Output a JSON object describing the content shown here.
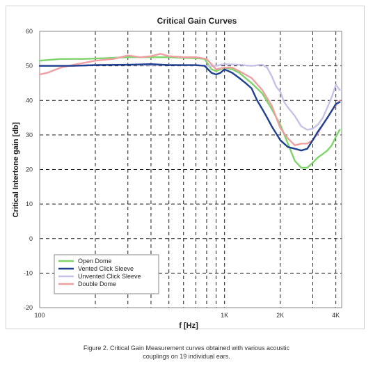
{
  "chart_data": {
    "type": "line",
    "title": "Critical Gain Curves",
    "xlabel": "f [Hz]",
    "ylabel": "Critical Intertone gain [db]",
    "x_scale": "log",
    "xlim": [
      100,
      4300
    ],
    "ylim": [
      -20,
      60
    ],
    "x_ticks": [
      {
        "value": 100,
        "label": "100"
      },
      {
        "value": 1000,
        "label": "1K"
      },
      {
        "value": 2000,
        "label": "2K"
      },
      {
        "value": 4000,
        "label": "4K"
      }
    ],
    "x_grid": [
      200,
      300,
      400,
      500,
      600,
      700,
      800,
      900,
      1000,
      2000,
      3000,
      4000
    ],
    "y_ticks": [
      60,
      50,
      40,
      30,
      20,
      10,
      0,
      -10,
      -20
    ],
    "y_grid": [
      50,
      40,
      30,
      20,
      10,
      0,
      -10
    ],
    "grid": true,
    "grid_style": "dashed",
    "legend_position": "bottom-left",
    "series": [
      {
        "name": "Open Dome",
        "color": "#7fd46a",
        "x": [
          100,
          130,
          170,
          220,
          300,
          400,
          500,
          600,
          700,
          780,
          850,
          900,
          1000,
          1100,
          1200,
          1400,
          1600,
          1800,
          2000,
          2200,
          2400,
          2600,
          2800,
          3000,
          3200,
          3400,
          3600,
          3800,
          4000,
          4200
        ],
        "values": [
          51.5,
          52,
          52,
          52.2,
          52.5,
          52.5,
          52.5,
          52.3,
          52.2,
          52,
          49,
          48.5,
          49.5,
          49,
          48,
          45,
          42,
          37.5,
          33,
          27.5,
          22.5,
          20.5,
          20.5,
          22,
          23.5,
          24.5,
          25.5,
          27,
          29.5,
          31.5
        ]
      },
      {
        "name": "Vented Click Sleeve",
        "color": "#1f3f8f",
        "x": [
          100,
          150,
          200,
          300,
          400,
          500,
          600,
          700,
          780,
          850,
          900,
          950,
          1000,
          1100,
          1200,
          1300,
          1400,
          1500,
          1600,
          1700,
          1800,
          2000,
          2200,
          2400,
          2600,
          2800,
          3000,
          3200,
          3400,
          3600,
          3800,
          4000,
          4200
        ],
        "values": [
          50,
          50,
          50.2,
          50.3,
          50.5,
          50.2,
          50.2,
          50.2,
          50,
          48,
          47.5,
          48,
          49,
          48,
          46.5,
          45,
          43.5,
          40,
          37.5,
          35,
          32.5,
          28.5,
          26.5,
          26,
          25.5,
          26,
          28.5,
          31,
          33,
          35,
          37,
          39,
          39.5
        ]
      },
      {
        "name": "Unvented Click Sleeve",
        "color": "#c6c1e6",
        "x": [
          100,
          150,
          200,
          300,
          400,
          500,
          600,
          700,
          800,
          900,
          1000,
          1200,
          1400,
          1600,
          1700,
          1800,
          1900,
          2000,
          2100,
          2200,
          2400,
          2600,
          2800,
          3000,
          3200,
          3400,
          3600,
          3800,
          4000,
          4200
        ],
        "values": [
          50,
          50,
          50.3,
          50.3,
          50.2,
          50.3,
          50.2,
          50.2,
          50,
          50,
          50.5,
          50.3,
          50,
          50.3,
          49.5,
          47,
          44,
          42.5,
          39.5,
          38,
          35.5,
          32.5,
          31.5,
          31.8,
          33,
          35,
          38,
          41,
          44.5,
          43
        ]
      },
      {
        "name": "Double Dome",
        "color": "#ef9ea2",
        "x": [
          100,
          110,
          130,
          160,
          200,
          250,
          300,
          350,
          400,
          450,
          500,
          600,
          700,
          800,
          900,
          1000,
          1100,
          1200,
          1400,
          1600,
          1800,
          2000,
          2200,
          2400,
          2600,
          2800,
          3000,
          3200,
          3400,
          3600,
          3800,
          4000,
          4200
        ],
        "values": [
          47.5,
          48,
          49.5,
          50.5,
          51.5,
          52,
          53,
          52.5,
          52.8,
          53.5,
          52.8,
          52.5,
          52.5,
          52,
          49,
          49.5,
          49.5,
          48.5,
          46.5,
          43,
          38.5,
          32,
          29,
          27,
          27.5,
          27.5,
          28.5,
          30.5,
          33,
          35,
          37,
          38.5,
          40
        ]
      }
    ]
  },
  "caption": {
    "line1": "Figure 2. Critical Gain Measurement curves obtained with various acoustic",
    "line2": "couplings on 19 individual ears."
  }
}
